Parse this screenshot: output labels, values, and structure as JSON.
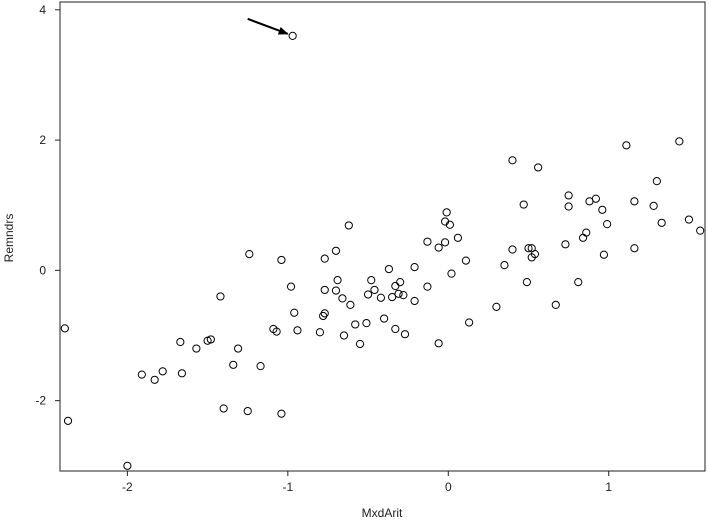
{
  "chart_data": {
    "type": "scatter",
    "title": "",
    "xlabel": "MxdArit",
    "ylabel": "Remndrs",
    "xlim": [
      -2.42,
      1.6
    ],
    "ylim": [
      -3.08,
      4.12
    ],
    "xticks": [
      -2,
      -1,
      0,
      1
    ],
    "yticks": [
      -2,
      0,
      2,
      4
    ],
    "xtick_labels": [
      "-2",
      "-1",
      "0",
      "1"
    ],
    "ytick_labels": [
      "-2",
      "0",
      "2",
      "4"
    ],
    "grid": false,
    "marker": "open-circle",
    "annotation": {
      "type": "arrow",
      "points_to": [
        -0.97,
        3.6
      ]
    },
    "points": [
      [
        -0.97,
        3.6
      ],
      [
        -2.39,
        -0.89
      ],
      [
        -2.37,
        -2.31
      ],
      [
        -2.0,
        -3.0
      ],
      [
        -1.91,
        -1.6
      ],
      [
        -1.83,
        -1.68
      ],
      [
        -1.78,
        -1.55
      ],
      [
        -1.67,
        -1.1
      ],
      [
        -1.66,
        -1.58
      ],
      [
        -1.57,
        -1.2
      ],
      [
        -1.5,
        -1.08
      ],
      [
        -1.48,
        -1.06
      ],
      [
        -1.42,
        -0.4
      ],
      [
        -1.4,
        -2.12
      ],
      [
        -1.34,
        -1.45
      ],
      [
        -1.31,
        -1.2
      ],
      [
        -1.24,
        0.25
      ],
      [
        -1.25,
        -2.16
      ],
      [
        -1.17,
        -1.47
      ],
      [
        -1.09,
        -0.9
      ],
      [
        -1.07,
        -0.94
      ],
      [
        -1.04,
        0.16
      ],
      [
        -1.04,
        -2.2
      ],
      [
        -0.98,
        -0.25
      ],
      [
        -0.96,
        -0.65
      ],
      [
        -0.94,
        -0.92
      ],
      [
        -0.8,
        -0.95
      ],
      [
        -0.78,
        -0.7
      ],
      [
        -0.77,
        -0.66
      ],
      [
        -0.77,
        0.18
      ],
      [
        -0.77,
        -0.3
      ],
      [
        -0.7,
        0.3
      ],
      [
        -0.7,
        -0.31
      ],
      [
        -0.69,
        -0.15
      ],
      [
        -0.66,
        -0.43
      ],
      [
        -0.65,
        -1.0
      ],
      [
        -0.62,
        0.69
      ],
      [
        -0.61,
        -0.53
      ],
      [
        -0.58,
        -0.83
      ],
      [
        -0.55,
        -1.13
      ],
      [
        -0.51,
        -0.81
      ],
      [
        -0.5,
        -0.37
      ],
      [
        -0.48,
        -0.15
      ],
      [
        -0.46,
        -0.3
      ],
      [
        -0.42,
        -0.42
      ],
      [
        -0.4,
        -0.74
      ],
      [
        -0.37,
        0.02
      ],
      [
        -0.35,
        -0.41
      ],
      [
        -0.33,
        -0.24
      ],
      [
        -0.33,
        -0.9
      ],
      [
        -0.31,
        -0.36
      ],
      [
        -0.3,
        -0.18
      ],
      [
        -0.28,
        -0.38
      ],
      [
        -0.27,
        -0.98
      ],
      [
        -0.21,
        0.05
      ],
      [
        -0.21,
        -0.47
      ],
      [
        -0.13,
        0.44
      ],
      [
        -0.13,
        -0.25
      ],
      [
        -0.06,
        0.35
      ],
      [
        -0.06,
        -1.12
      ],
      [
        -0.02,
        0.75
      ],
      [
        -0.01,
        0.89
      ],
      [
        -0.02,
        0.43
      ],
      [
        0.01,
        0.7
      ],
      [
        0.02,
        -0.05
      ],
      [
        0.06,
        0.5
      ],
      [
        0.11,
        0.15
      ],
      [
        0.13,
        -0.8
      ],
      [
        0.3,
        -0.56
      ],
      [
        0.35,
        0.08
      ],
      [
        0.4,
        1.69
      ],
      [
        0.4,
        0.32
      ],
      [
        0.47,
        1.01
      ],
      [
        0.49,
        -0.18
      ],
      [
        0.5,
        0.34
      ],
      [
        0.52,
        0.34
      ],
      [
        0.52,
        0.2
      ],
      [
        0.54,
        0.25
      ],
      [
        0.56,
        1.58
      ],
      [
        0.67,
        -0.53
      ],
      [
        0.73,
        0.4
      ],
      [
        0.75,
        1.15
      ],
      [
        0.75,
        0.98
      ],
      [
        0.81,
        -0.18
      ],
      [
        0.84,
        0.5
      ],
      [
        0.86,
        0.58
      ],
      [
        0.88,
        1.06
      ],
      [
        0.92,
        1.1
      ],
      [
        0.96,
        0.93
      ],
      [
        0.97,
        0.24
      ],
      [
        0.99,
        0.71
      ],
      [
        1.11,
        1.92
      ],
      [
        1.16,
        1.06
      ],
      [
        1.16,
        0.34
      ],
      [
        1.28,
        0.99
      ],
      [
        1.3,
        1.37
      ],
      [
        1.33,
        0.73
      ],
      [
        1.44,
        1.98
      ],
      [
        1.5,
        0.78
      ],
      [
        1.57,
        0.61
      ]
    ]
  }
}
